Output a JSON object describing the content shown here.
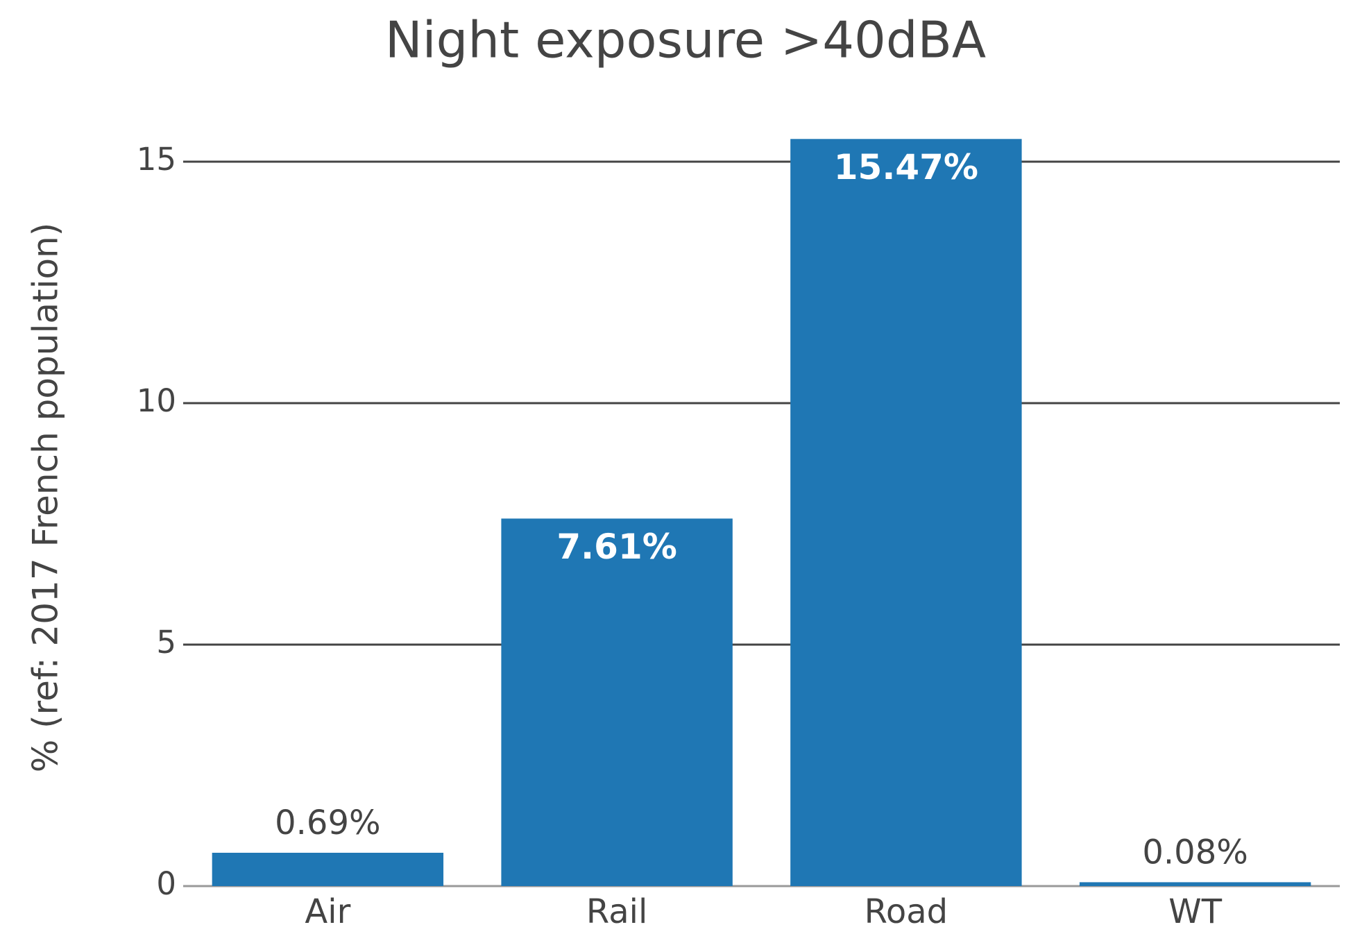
{
  "chart_data": {
    "type": "bar",
    "title": "Night exposure >40dBA",
    "y_label": "% (ref: 2017 French population)",
    "categories": [
      "Air",
      "Rail",
      "Road",
      "WT"
    ],
    "values": [
      0.69,
      7.61,
      15.47,
      0.08
    ],
    "value_labels": [
      "0.69%",
      "7.61%",
      "15.47%",
      "0.08%"
    ],
    "color": "#1f77b4",
    "ylim": [
      0,
      16
    ],
    "yticks": [
      0,
      5,
      10,
      15
    ],
    "grid": true
  }
}
